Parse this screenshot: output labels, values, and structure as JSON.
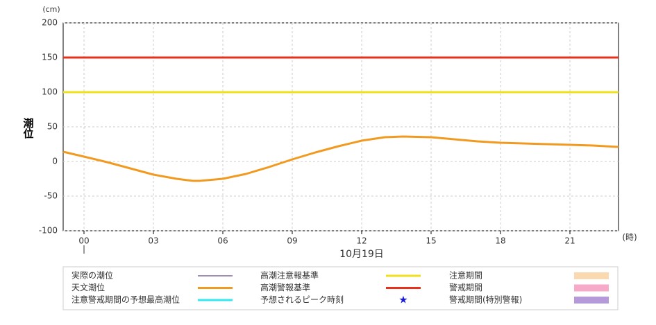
{
  "chart_data": {
    "type": "line",
    "y_label": "潮位",
    "y_unit": "(cm)",
    "x_unit": "(時)",
    "x_date": "10月19日",
    "xlim": [
      -0.9,
      23.1
    ],
    "xticks": [
      {
        "value": 0,
        "label": "00"
      },
      {
        "value": 3,
        "label": "03"
      },
      {
        "value": 6,
        "label": "06"
      },
      {
        "value": 9,
        "label": "09"
      },
      {
        "value": 12,
        "label": "12"
      },
      {
        "value": 15,
        "label": "15"
      },
      {
        "value": 18,
        "label": "18"
      },
      {
        "value": 21,
        "label": "21"
      }
    ],
    "ylim": [
      -100,
      200
    ],
    "yticks": [
      -100,
      -50,
      0,
      50,
      100,
      150,
      200
    ],
    "grid": true,
    "series": [
      {
        "name": "実際の潮位",
        "color": "#3a1a6e",
        "style": "line"
      },
      {
        "name": "天文潮位",
        "color": "#f29a1f",
        "style": "thick-line",
        "x": [
          -0.9,
          0,
          1,
          2,
          3,
          4,
          4.7,
          5,
          6,
          7,
          8,
          9,
          10,
          11,
          12,
          13,
          13.8,
          15,
          16,
          17,
          18,
          19,
          20,
          21,
          22,
          23.1
        ],
        "values": [
          14,
          7,
          -1,
          -10,
          -19,
          -25,
          -28,
          -28,
          -25,
          -18,
          -8,
          3,
          13,
          22,
          30,
          35,
          36,
          35,
          32,
          29,
          27,
          26,
          25,
          24,
          23,
          21
        ]
      },
      {
        "name": "注意警戒期間の予想最高潮位",
        "color": "#33e8f0",
        "style": "thick-line"
      },
      {
        "name": "高潮注意報基準",
        "color": "#f0e01c",
        "style": "thick-line",
        "y": 100
      },
      {
        "name": "高潮警報基準",
        "color": "#e8301c",
        "style": "thick-line",
        "y": 150
      },
      {
        "name": "予想されるピーク時刻",
        "color": "#1a1ad8",
        "style": "star"
      },
      {
        "name": "注意期間",
        "color": "#fad9b0",
        "style": "band"
      },
      {
        "name": "警戒期間",
        "color": "#f7a9c8",
        "style": "band"
      },
      {
        "name": "警戒期間(特別警報)",
        "color": "#b49ad8",
        "style": "band"
      }
    ]
  }
}
